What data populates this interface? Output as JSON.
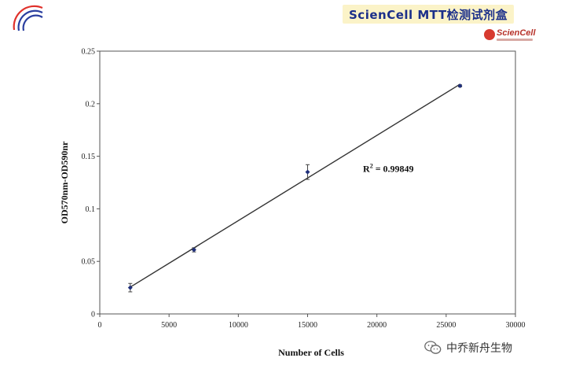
{
  "header": {
    "banner_title": "ScienCell MTT检测试剂盒",
    "brand_logo_text": "ScienCell",
    "colors": {
      "banner_background": "#fbf3c8",
      "banner_text": "#1b2f8a",
      "brand_red": "#d73a2f",
      "arc_red": "#e0322c",
      "arc_blue": "#2b3fa0"
    },
    "icons": [
      "logo-arcs-icon",
      "sciencell-logo-icon"
    ]
  },
  "footer": {
    "source_label": "中乔新舟生物",
    "icon": "wechat-icon"
  },
  "chart_data": {
    "type": "scatter",
    "title": "",
    "xlabel": "Number of Cells",
    "ylabel": "OD570nm-OD590nr",
    "xlim": [
      0,
      30000
    ],
    "ylim": [
      0,
      0.25
    ],
    "x_ticks": [
      0,
      5000,
      10000,
      15000,
      20000,
      25000,
      30000
    ],
    "x_tick_labels": [
      "0",
      "5000",
      "10000",
      "15000",
      "20000",
      "25000",
      "30000"
    ],
    "y_ticks": [
      0,
      0.05,
      0.1,
      0.15,
      0.2,
      0.25
    ],
    "y_tick_labels": [
      "0",
      "0.05",
      "0.1",
      "0.15",
      "0.2",
      "0.25"
    ],
    "grid": false,
    "legend": "none",
    "annotation": {
      "base": "R",
      "superscript": "2",
      "rest": " = 0.99849",
      "x": 19000,
      "y": 0.135
    },
    "series": [
      {
        "points": [
          {
            "x": 2200,
            "y": 0.025,
            "err": 0.004
          },
          {
            "x": 6800,
            "y": 0.061,
            "err": 0.002
          },
          {
            "x": 15000,
            "y": 0.135,
            "err": 0.007
          },
          {
            "x": 26000,
            "y": 0.217,
            "err": 0.001
          }
        ],
        "color": "#1f2f7a"
      }
    ],
    "trendline": {
      "x": [
        2200,
        26000
      ],
      "y": [
        0.0255,
        0.2185
      ],
      "color": "#333333"
    }
  }
}
